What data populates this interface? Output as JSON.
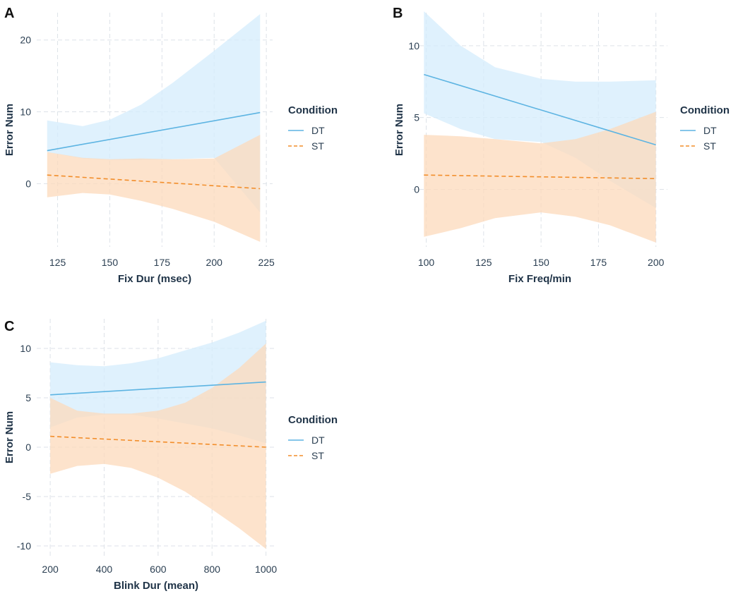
{
  "chart_data": [
    {
      "panel": "A",
      "type": "line",
      "xlabel": "Fix Dur (msec)",
      "ylabel": "Error Num",
      "xlim": [
        115,
        228
      ],
      "ylim": [
        -8.8,
        23.8
      ],
      "xticks": [
        125,
        150,
        175,
        200,
        225
      ],
      "yticks": [
        0,
        10,
        20
      ],
      "legend": {
        "title": "Condition",
        "position": "right",
        "items": [
          {
            "label": "DT",
            "color": "#5DB4E2",
            "dash": "solid"
          },
          {
            "label": "ST",
            "color": "#F28E2B",
            "dash": "dashed"
          }
        ]
      },
      "series": [
        {
          "name": "DT",
          "color": "#5DB4E2",
          "band_color": "#D4ECFC",
          "x": [
            120,
            222
          ],
          "y": [
            4.6,
            9.9
          ],
          "band_x": [
            120,
            137,
            150,
            165,
            180,
            200,
            222
          ],
          "band_lower": [
            4.4,
            3.5,
            3.3,
            3.3,
            3.4,
            3.6,
            -4.0
          ],
          "band_upper": [
            8.8,
            8.0,
            8.9,
            11.0,
            14.0,
            18.5,
            23.6
          ]
        },
        {
          "name": "ST",
          "color": "#F28E2B",
          "band_color": "#FCD9BB",
          "x": [
            120,
            222
          ],
          "y": [
            1.2,
            -0.7
          ],
          "band_x": [
            120,
            137,
            150,
            165,
            180,
            200,
            222
          ],
          "band_lower": [
            -1.9,
            -1.3,
            -1.5,
            -2.4,
            -3.5,
            -5.3,
            -8.1
          ],
          "band_upper": [
            4.4,
            3.6,
            3.4,
            3.5,
            3.4,
            3.5,
            6.8
          ]
        }
      ]
    },
    {
      "panel": "B",
      "type": "line",
      "xlabel": "Fix Freq/min",
      "ylabel": "Error Num",
      "xlim": [
        94,
        205
      ],
      "ylim": [
        -4.0,
        12.3
      ],
      "xticks": [
        100,
        125,
        150,
        175,
        200
      ],
      "yticks": [
        0,
        5,
        10
      ],
      "legend": {
        "title": "Condition",
        "position": "right",
        "items": [
          {
            "label": "DT",
            "color": "#5DB4E2",
            "dash": "solid"
          },
          {
            "label": "ST",
            "color": "#F28E2B",
            "dash": "dashed"
          }
        ]
      },
      "series": [
        {
          "name": "DT",
          "color": "#5DB4E2",
          "band_color": "#D4ECFC",
          "x": [
            99,
            200
          ],
          "y": [
            8.0,
            3.1
          ],
          "band_x": [
            99,
            115,
            130,
            150,
            165,
            180,
            200
          ],
          "band_lower": [
            5.3,
            4.2,
            3.5,
            3.3,
            2.2,
            0.6,
            -1.3
          ],
          "band_upper": [
            12.4,
            10.0,
            8.5,
            7.7,
            7.5,
            7.5,
            7.6
          ]
        },
        {
          "name": "ST",
          "color": "#F28E2B",
          "band_color": "#FCD9BB",
          "x": [
            99,
            200
          ],
          "y": [
            1.0,
            0.75
          ],
          "band_x": [
            99,
            115,
            130,
            150,
            165,
            180,
            200
          ],
          "band_lower": [
            -3.3,
            -2.7,
            -2.0,
            -1.6,
            -1.9,
            -2.5,
            -3.7
          ],
          "band_upper": [
            3.8,
            3.7,
            3.5,
            3.2,
            3.5,
            4.2,
            5.4
          ]
        }
      ]
    },
    {
      "panel": "C",
      "type": "line",
      "xlabel": "Blink Dur (mean)",
      "ylabel": "Error Num",
      "xlim": [
        150,
        1035
      ],
      "ylim": [
        -11.0,
        13.0
      ],
      "xticks": [
        200,
        400,
        600,
        800,
        1000
      ],
      "yticks": [
        -10,
        -5,
        0,
        5,
        10
      ],
      "legend": {
        "title": "Condition",
        "position": "right",
        "items": [
          {
            "label": "DT",
            "color": "#5DB4E2",
            "dash": "solid"
          },
          {
            "label": "ST",
            "color": "#F28E2B",
            "dash": "dashed"
          }
        ]
      },
      "series": [
        {
          "name": "DT",
          "color": "#5DB4E2",
          "band_color": "#D4ECFC",
          "x": [
            200,
            1000
          ],
          "y": [
            5.3,
            6.6
          ],
          "band_x": [
            200,
            300,
            400,
            500,
            600,
            700,
            800,
            900,
            1000
          ],
          "band_lower": [
            2.0,
            3.0,
            3.3,
            3.3,
            2.9,
            2.4,
            1.9,
            1.2,
            0.4
          ],
          "band_upper": [
            8.6,
            8.3,
            8.2,
            8.5,
            9.0,
            9.8,
            10.6,
            11.6,
            12.8
          ]
        },
        {
          "name": "ST",
          "color": "#F28E2B",
          "band_color": "#FCD9BB",
          "x": [
            200,
            1000
          ],
          "y": [
            1.1,
            0.0
          ],
          "band_x": [
            200,
            300,
            400,
            500,
            600,
            700,
            800,
            900,
            1000
          ],
          "band_lower": [
            -2.7,
            -1.9,
            -1.7,
            -2.1,
            -3.1,
            -4.5,
            -6.3,
            -8.2,
            -10.3
          ],
          "band_upper": [
            5.0,
            3.7,
            3.4,
            3.4,
            3.7,
            4.5,
            6.0,
            8.0,
            10.5
          ]
        }
      ]
    }
  ]
}
